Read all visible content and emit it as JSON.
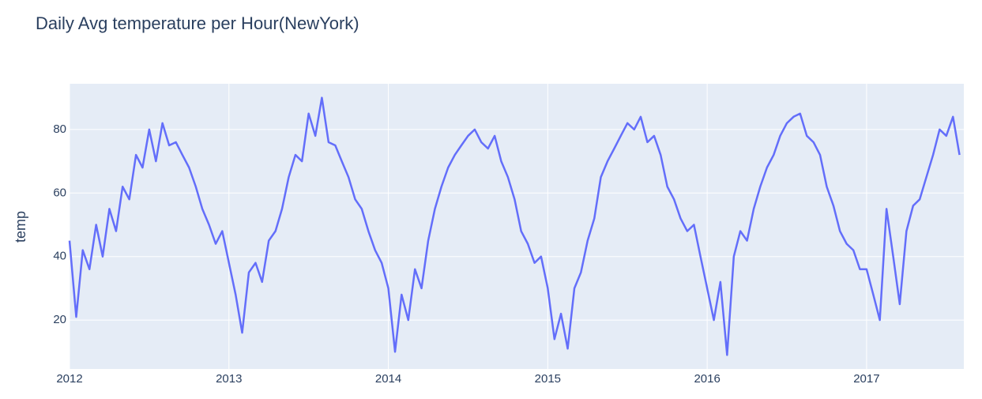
{
  "chart_data": {
    "type": "line",
    "title": "Daily Avg temperature per Hour(NewYork)",
    "y_label": "temp",
    "color": "#636efa",
    "grid": true,
    "xlim": [
      2012,
      2017.61
    ],
    "xticks": [
      2012,
      2013,
      2014,
      2015,
      2016,
      2017
    ],
    "ylim": [
      4.6,
      94.4
    ],
    "yticks": [
      20,
      40,
      60,
      80
    ],
    "x": [
      2012,
      2012.042,
      2012.083,
      2012.125,
      2012.167,
      2012.208,
      2012.25,
      2012.292,
      2012.333,
      2012.375,
      2012.417,
      2012.458,
      2012.5,
      2012.542,
      2012.583,
      2012.625,
      2012.667,
      2012.708,
      2012.75,
      2012.792,
      2012.833,
      2012.875,
      2012.917,
      2012.958,
      2013,
      2013.042,
      2013.083,
      2013.125,
      2013.167,
      2013.208,
      2013.25,
      2013.292,
      2013.333,
      2013.375,
      2013.417,
      2013.458,
      2013.5,
      2013.542,
      2013.583,
      2013.625,
      2013.667,
      2013.708,
      2013.75,
      2013.792,
      2013.833,
      2013.875,
      2013.917,
      2013.958,
      2014,
      2014.042,
      2014.083,
      2014.125,
      2014.167,
      2014.208,
      2014.25,
      2014.292,
      2014.333,
      2014.375,
      2014.417,
      2014.458,
      2014.5,
      2014.542,
      2014.583,
      2014.625,
      2014.667,
      2014.708,
      2014.75,
      2014.792,
      2014.833,
      2014.875,
      2014.917,
      2014.958,
      2015,
      2015.042,
      2015.083,
      2015.125,
      2015.167,
      2015.208,
      2015.25,
      2015.292,
      2015.333,
      2015.375,
      2015.417,
      2015.458,
      2015.5,
      2015.542,
      2015.583,
      2015.625,
      2015.667,
      2015.708,
      2015.75,
      2015.792,
      2015.833,
      2015.875,
      2015.917,
      2015.958,
      2016,
      2016.042,
      2016.083,
      2016.125,
      2016.167,
      2016.208,
      2016.25,
      2016.292,
      2016.333,
      2016.375,
      2016.417,
      2016.458,
      2016.5,
      2016.542,
      2016.583,
      2016.625,
      2016.667,
      2016.708,
      2016.75,
      2016.792,
      2016.833,
      2016.875,
      2016.917,
      2016.958,
      2017,
      2017.042,
      2017.083,
      2017.125,
      2017.167,
      2017.208,
      2017.25,
      2017.292,
      2017.333,
      2017.375,
      2017.417,
      2017.458,
      2017.5,
      2017.542,
      2017.583
    ],
    "values": [
      45,
      21,
      42,
      36,
      50,
      40,
      55,
      48,
      62,
      58,
      72,
      68,
      80,
      70,
      82,
      75,
      76,
      72,
      68,
      62,
      55,
      50,
      44,
      48,
      38,
      28,
      16,
      35,
      38,
      32,
      45,
      48,
      55,
      65,
      72,
      70,
      85,
      78,
      90,
      76,
      75,
      70,
      65,
      58,
      55,
      48,
      42,
      38,
      30,
      10,
      28,
      20,
      36,
      30,
      45,
      55,
      62,
      68,
      72,
      75,
      78,
      80,
      76,
      74,
      78,
      70,
      65,
      58,
      48,
      44,
      38,
      40,
      30,
      14,
      22,
      11,
      30,
      35,
      45,
      52,
      65,
      70,
      74,
      78,
      82,
      80,
      84,
      76,
      78,
      72,
      62,
      58,
      52,
      48,
      50,
      40,
      30,
      20,
      32,
      9,
      40,
      48,
      45,
      55,
      62,
      68,
      72,
      78,
      82,
      84,
      85,
      78,
      76,
      72,
      62,
      56,
      48,
      44,
      42,
      36,
      36,
      28,
      20,
      55,
      40,
      25,
      48,
      56,
      58,
      65,
      72,
      80,
      78,
      84,
      72
    ]
  }
}
